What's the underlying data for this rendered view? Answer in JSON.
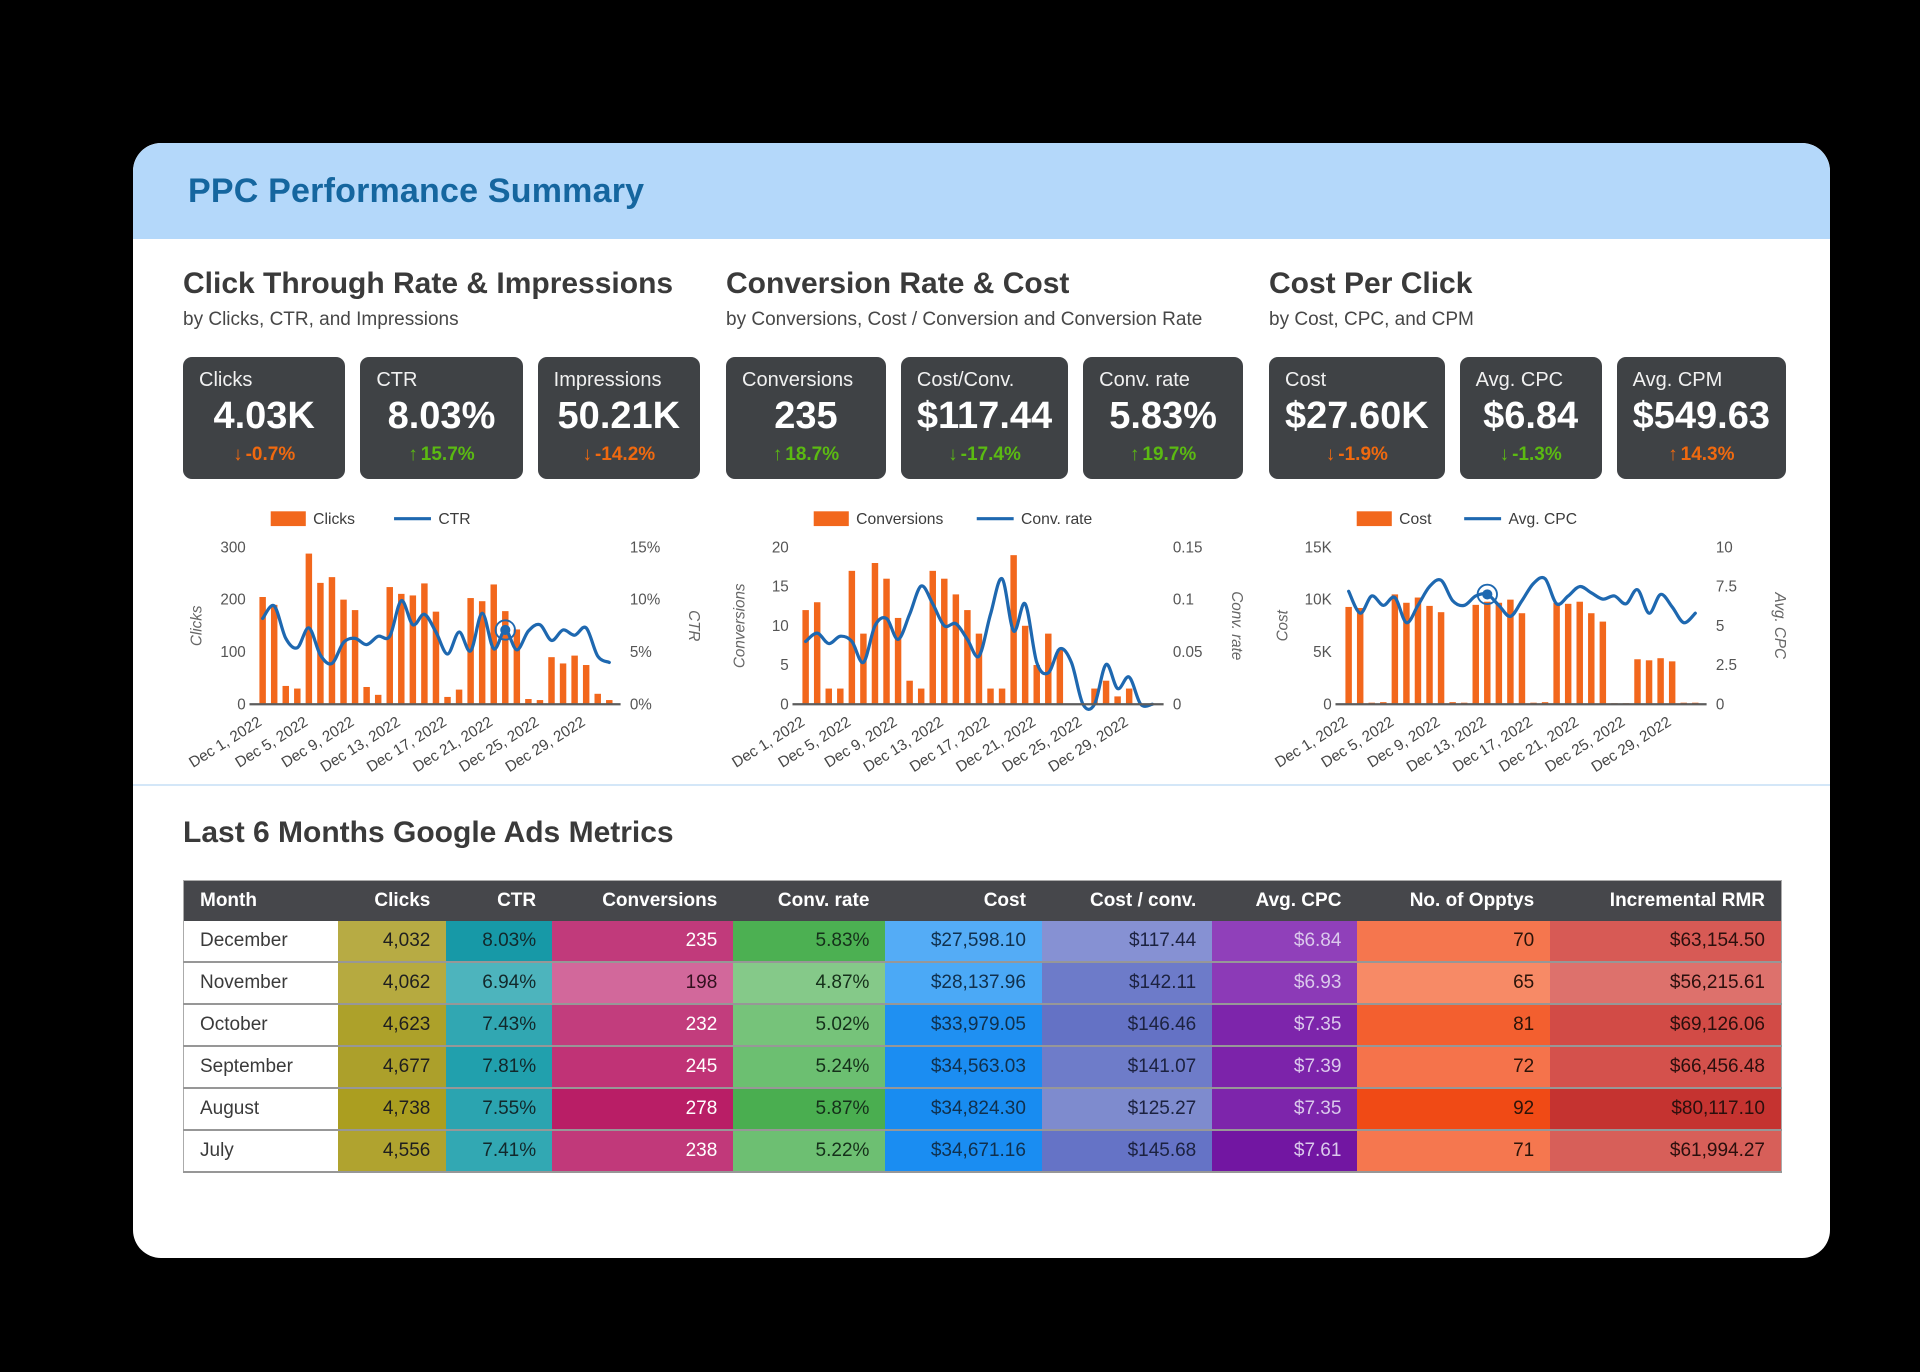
{
  "header": {
    "title": "PPC Performance Summary"
  },
  "colors": {
    "header_bg": "#B4D8FA",
    "header_text": "#15669F",
    "kpi_card_bg": "#3F4245",
    "bar_orange": "#F2671C",
    "line_blue": "#1E68B0",
    "delta_up_green": "#5BBA12",
    "delta_down_orange": "#F0690F",
    "divider_blue": "#D4E7F8",
    "table_header_bg": "#46474B"
  },
  "sections": [
    {
      "title": "Click Through Rate & Impressions",
      "subtitle": "by Clicks, CTR, and Impressions",
      "kpis": [
        {
          "label": "Clicks",
          "value": "4.03K",
          "delta": "-0.7%",
          "direction": "down",
          "delta_color": "#F0690F"
        },
        {
          "label": "CTR",
          "value": "8.03%",
          "delta": "15.7%",
          "direction": "up",
          "delta_color": "#5BBA12"
        },
        {
          "label": "Impressions",
          "value": "50.21K",
          "delta": "-14.2%",
          "direction": "down",
          "delta_color": "#F0690F"
        }
      ]
    },
    {
      "title": "Conversion Rate & Cost",
      "subtitle": "by Conversions, Cost / Conversion and Conversion Rate",
      "kpis": [
        {
          "label": "Conversions",
          "value": "235",
          "delta": "18.7%",
          "direction": "up",
          "delta_color": "#5BBA12"
        },
        {
          "label": "Cost/Conv.",
          "value": "$117.44",
          "delta": "-17.4%",
          "direction": "down",
          "delta_color": "#5BBA12"
        },
        {
          "label": "Conv. rate",
          "value": "5.83%",
          "delta": "19.7%",
          "direction": "up",
          "delta_color": "#5BBA12"
        }
      ]
    },
    {
      "title": "Cost Per Click",
      "subtitle": "by Cost, CPC, and CPM",
      "kpis": [
        {
          "label": "Cost",
          "value": "$27.60K",
          "delta": "-1.9%",
          "direction": "down",
          "delta_color": "#F0690F"
        },
        {
          "label": "Avg. CPC",
          "value": "$6.84",
          "delta": "-1.3%",
          "direction": "down",
          "delta_color": "#5BBA12"
        },
        {
          "label": "Avg. CPM",
          "value": "$549.63",
          "delta": "14.3%",
          "direction": "up",
          "delta_color": "#F0690F"
        }
      ]
    }
  ],
  "chart_data": [
    {
      "type": "bar",
      "subtype": "combo-bar-line",
      "title": "Clicks & CTR by day, Dec 2022",
      "bar_series": {
        "name": "Clicks",
        "values": [
          205,
          190,
          35,
          30,
          288,
          232,
          243,
          200,
          180,
          33,
          18,
          224,
          211,
          208,
          231,
          177,
          14,
          28,
          203,
          197,
          229,
          178,
          143,
          10,
          8,
          90,
          78,
          93,
          75,
          20,
          8
        ]
      },
      "line_series": {
        "name": "CTR",
        "values": [
          8.2,
          9.4,
          6.3,
          5.4,
          7.3,
          4.7,
          3.9,
          5.9,
          6.3,
          5.7,
          6.5,
          6.5,
          9.9,
          7.6,
          8.6,
          6.9,
          4.8,
          6.9,
          5.1,
          8.7,
          5.3,
          7.1,
          5.2,
          7.0,
          7.6,
          6.1,
          7.1,
          6.6,
          7.3,
          4.6,
          4.0
        ]
      },
      "left_axis": {
        "title": "Clicks",
        "ticks": [
          "0",
          "100",
          "200",
          "300"
        ],
        "max": 300
      },
      "right_axis": {
        "title": "CTR",
        "ticks": [
          "0%",
          "5%",
          "10%",
          "15%"
        ],
        "max": 15
      },
      "x_tick_labels": [
        "Dec 1, 2022",
        "Dec 5, 2022",
        "Dec 9, 2022",
        "Dec 13, 2022",
        "Dec 17, 2022",
        "Dec 21, 2022",
        "Dec 25, 2022",
        "Dec 29, 2022"
      ],
      "marker_index": 21,
      "legend_position": "top",
      "grid": false
    },
    {
      "type": "bar",
      "subtype": "combo-bar-line",
      "title": "Conversions & Conv. rate by day, Dec 2022",
      "bar_series": {
        "name": "Conversions",
        "values": [
          12,
          13,
          2,
          2,
          17,
          9,
          18,
          16,
          11,
          3,
          2,
          17,
          16,
          14,
          12,
          9,
          2,
          2,
          19,
          10,
          5,
          9,
          7,
          0,
          0,
          2,
          3,
          1,
          2,
          0,
          0
        ]
      },
      "line_series": {
        "name": "Conv. rate",
        "values": [
          0.06,
          0.068,
          0.058,
          0.065,
          0.06,
          0.04,
          0.075,
          0.082,
          0.062,
          0.086,
          0.113,
          0.096,
          0.075,
          0.077,
          0.062,
          0.046,
          0.086,
          0.12,
          0.07,
          0.096,
          0.04,
          0.03,
          0.053,
          0.04,
          0.0,
          0.0,
          0.038,
          0.015,
          0.026,
          0.0,
          0.0
        ]
      },
      "left_axis": {
        "title": "Conversions",
        "ticks": [
          "0",
          "5",
          "10",
          "15",
          "20"
        ],
        "max": 20
      },
      "right_axis": {
        "title": "Conv. rate",
        "ticks": [
          "0",
          "0.05",
          "0.1",
          "0.15"
        ],
        "max": 0.15
      },
      "x_tick_labels": [
        "Dec 1, 2022",
        "Dec 5, 2022",
        "Dec 9, 2022",
        "Dec 13, 2022",
        "Dec 17, 2022",
        "Dec 21, 2022",
        "Dec 25, 2022",
        "Dec 29, 2022"
      ],
      "marker_index": null,
      "legend_position": "top",
      "grid": false
    },
    {
      "type": "bar",
      "subtype": "combo-bar-line",
      "title": "Cost & Avg. CPC by day, Dec 2022",
      "bar_series": {
        "name": "Cost",
        "values": [
          9.3,
          9.2,
          0.15,
          0.2,
          10.5,
          9.7,
          10.2,
          9.4,
          8.8,
          0.2,
          0.15,
          9.5,
          9.8,
          9.7,
          10.0,
          8.7,
          0.15,
          0.2,
          9.7,
          9.6,
          9.8,
          8.7,
          7.9,
          0.1,
          0.1,
          4.3,
          4.2,
          4.4,
          4.1,
          0.15,
          0.15
        ]
      },
      "line_series": {
        "name": "Avg. CPC",
        "values": [
          7.2,
          5.8,
          6.9,
          6.3,
          6.8,
          5.2,
          6.3,
          7.5,
          7.9,
          6.6,
          6.3,
          6.9,
          7.0,
          6.3,
          5.6,
          6.6,
          7.7,
          8.0,
          6.4,
          6.9,
          7.5,
          7.1,
          6.7,
          6.9,
          6.4,
          7.3,
          5.8,
          7.0,
          6.2,
          5.2,
          5.8
        ]
      },
      "left_axis": {
        "title": "Cost",
        "ticks": [
          "0",
          "5K",
          "10K",
          "15K"
        ],
        "max": 15
      },
      "right_axis": {
        "title": "Avg. CPC",
        "ticks": [
          "0",
          "2.5",
          "5",
          "7.5",
          "10"
        ],
        "max": 10
      },
      "x_tick_labels": [
        "Dec 1, 2022",
        "Dec 5, 2022",
        "Dec 9, 2022",
        "Dec 13, 2022",
        "Dec 17, 2022",
        "Dec 21, 2022",
        "Dec 25, 2022",
        "Dec 29, 2022"
      ],
      "marker_index": 12,
      "legend_position": "top",
      "grid": false
    }
  ],
  "table": {
    "title": "Last 6 Months Google Ads Metrics",
    "columns": [
      "Month",
      "Clicks",
      "CTR",
      "Conversions",
      "Conv. rate",
      "Cost",
      "Cost / conv.",
      "Avg. CPC",
      "No. of Opptys",
      "Incremental RMR"
    ],
    "rows": [
      {
        "month": "December",
        "cells": [
          {
            "t": "4,032",
            "bg": "#B7AB44",
            "fg": "#1F1F1F"
          },
          {
            "t": "8.03%",
            "bg": "#1799A7",
            "fg": "#12282B"
          },
          {
            "t": "235",
            "bg": "#C13A7B",
            "fg": "#FFFFFF"
          },
          {
            "t": "5.83%",
            "bg": "#4CB052",
            "fg": "#15301A"
          },
          {
            "t": "$27,598.10",
            "bg": "#54ACF6",
            "fg": "#10304D"
          },
          {
            "t": "$117.44",
            "bg": "#8691D3",
            "fg": "#1C2240"
          },
          {
            "t": "$6.84",
            "bg": "#9040BA",
            "fg": "#DBC9EC"
          },
          {
            "t": "70",
            "bg": "#F5764E",
            "fg": "#2B1409"
          },
          {
            "t": "$63,154.50",
            "bg": "#D75A55",
            "fg": "#2B0F0D"
          }
        ]
      },
      {
        "month": "November",
        "cells": [
          {
            "t": "4,062",
            "bg": "#B6AA40",
            "fg": "#1F1F1F"
          },
          {
            "t": "6.94%",
            "bg": "#4DB4BD",
            "fg": "#12282B"
          },
          {
            "t": "198",
            "bg": "#D2689B",
            "fg": "#33101F"
          },
          {
            "t": "4.87%",
            "bg": "#85C989",
            "fg": "#15301A"
          },
          {
            "t": "$28,137.96",
            "bg": "#4BA9F6",
            "fg": "#10304D"
          },
          {
            "t": "$142.11",
            "bg": "#6D7BC9",
            "fg": "#1C2240"
          },
          {
            "t": "$6.93",
            "bg": "#8C3AB7",
            "fg": "#DBC9EC"
          },
          {
            "t": "65",
            "bg": "#F78A66",
            "fg": "#2B1409"
          },
          {
            "t": "$56,215.61",
            "bg": "#DD716C",
            "fg": "#2B0F0D"
          }
        ]
      },
      {
        "month": "October",
        "cells": [
          {
            "t": "4,623",
            "bg": "#ADA12A",
            "fg": "#1F1F1F"
          },
          {
            "t": "7.43%",
            "bg": "#31A7B2",
            "fg": "#12282B"
          },
          {
            "t": "232",
            "bg": "#C23D7D",
            "fg": "#FFFFFF"
          },
          {
            "t": "5.02%",
            "bg": "#76C37A",
            "fg": "#15301A"
          },
          {
            "t": "$33,979.05",
            "bg": "#1F90F2",
            "fg": "#10304D"
          },
          {
            "t": "$146.46",
            "bg": "#6472C5",
            "fg": "#1C2240"
          },
          {
            "t": "$7.35",
            "bg": "#7D25AB",
            "fg": "#DBC9EC"
          },
          {
            "t": "81",
            "bg": "#F35F2F",
            "fg": "#2B1409"
          },
          {
            "t": "$69,126.06",
            "bg": "#D24B46",
            "fg": "#2B0F0D"
          }
        ]
      },
      {
        "month": "September",
        "cells": [
          {
            "t": "4,677",
            "bg": "#ACA02B",
            "fg": "#1F1F1F"
          },
          {
            "t": "7.81%",
            "bg": "#21A0AD",
            "fg": "#12282B"
          },
          {
            "t": "245",
            "bg": "#C03376",
            "fg": "#FFFFFF"
          },
          {
            "t": "5.24%",
            "bg": "#6CBF71",
            "fg": "#15301A"
          },
          {
            "t": "$34,563.03",
            "bg": "#1B8DF2",
            "fg": "#10304D"
          },
          {
            "t": "$141.07",
            "bg": "#6E7CC9",
            "fg": "#1C2240"
          },
          {
            "t": "$7.39",
            "bg": "#7C23AA",
            "fg": "#DBC9EC"
          },
          {
            "t": "72",
            "bg": "#F5734B",
            "fg": "#2B1409"
          },
          {
            "t": "$66,456.48",
            "bg": "#D4514C",
            "fg": "#2B0F0D"
          }
        ]
      },
      {
        "month": "August",
        "cells": [
          {
            "t": "4,738",
            "bg": "#AB9E20",
            "fg": "#1F1F1F"
          },
          {
            "t": "7.55%",
            "bg": "#2BA4B0",
            "fg": "#12282B"
          },
          {
            "t": "278",
            "bg": "#B91E66",
            "fg": "#FFFFFF"
          },
          {
            "t": "5.87%",
            "bg": "#4AAE50",
            "fg": "#15301A"
          },
          {
            "t": "$34,824.30",
            "bg": "#188CF1",
            "fg": "#10304D"
          },
          {
            "t": "$125.27",
            "bg": "#7E8BCE",
            "fg": "#1C2240"
          },
          {
            "t": "$7.35",
            "bg": "#7D25AB",
            "fg": "#DBC9EC"
          },
          {
            "t": "92",
            "bg": "#F04A15",
            "fg": "#2B1409"
          },
          {
            "t": "$80,117.10",
            "bg": "#C53330",
            "fg": "#2B0F0D"
          }
        ]
      },
      {
        "month": "July",
        "cells": [
          {
            "t": "4,556",
            "bg": "#B0A32F",
            "fg": "#1F1F1F"
          },
          {
            "t": "7.41%",
            "bg": "#32A8B3",
            "fg": "#12282B"
          },
          {
            "t": "238",
            "bg": "#C1397A",
            "fg": "#FFFFFF"
          },
          {
            "t": "5.22%",
            "bg": "#6DBF72",
            "fg": "#15301A"
          },
          {
            "t": "$34,671.16",
            "bg": "#1A8DF2",
            "fg": "#10304D"
          },
          {
            "t": "$145.68",
            "bg": "#6573C6",
            "fg": "#1C2240"
          },
          {
            "t": "$7.61",
            "bg": "#7216A2",
            "fg": "#DBC9EC"
          },
          {
            "t": "71",
            "bg": "#F5774F",
            "fg": "#2B1409"
          },
          {
            "t": "$61,994.27",
            "bg": "#D75F59",
            "fg": "#2B0F0D"
          }
        ]
      }
    ]
  }
}
